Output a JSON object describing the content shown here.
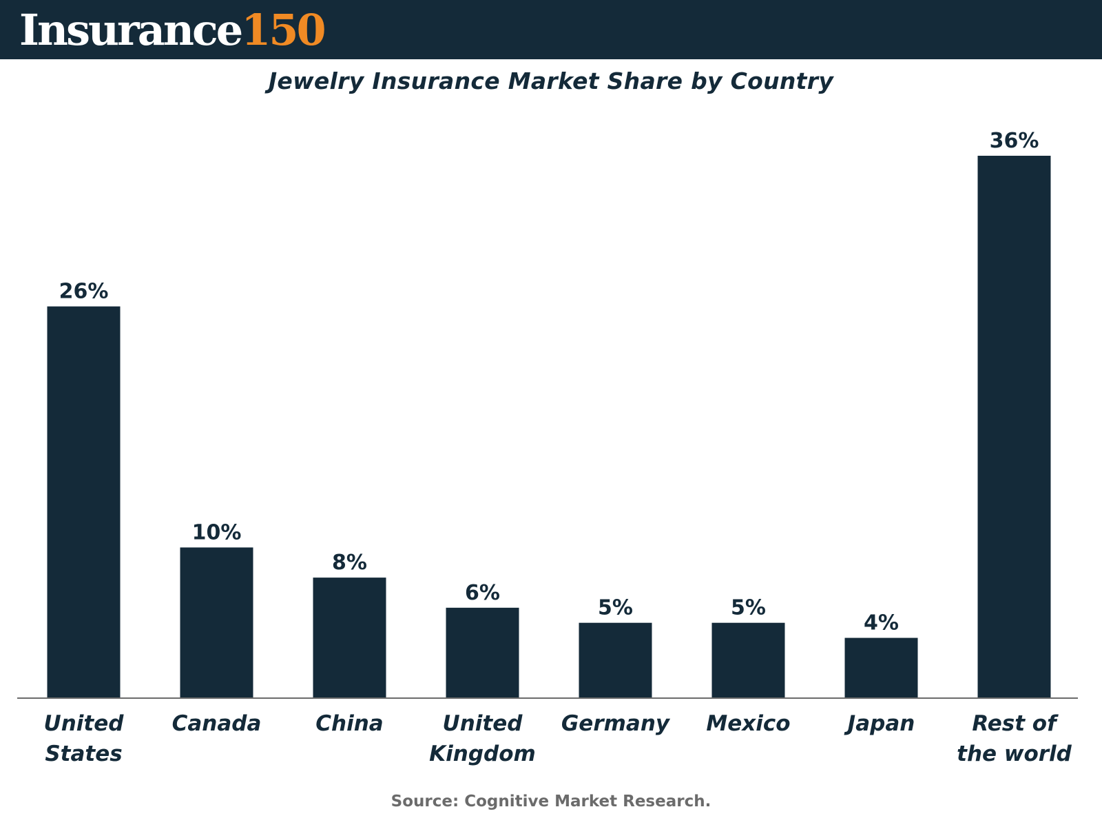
{
  "header": {
    "logo_word": "Insurance",
    "logo_number": "150"
  },
  "source": "Source: Cognitive Market Research.",
  "colors": {
    "bar": "#142a39",
    "header_bg": "#142a39",
    "accent": "#f08a24",
    "text": "#142a39",
    "source_text": "#6b6b6b"
  },
  "chart_data": {
    "type": "bar",
    "title": "Jewelry Insurance Market Share by Country",
    "xlabel": "",
    "ylabel": "",
    "categories": [
      "United States",
      "Canada",
      "China",
      "United Kingdom",
      "Germany",
      "Mexico",
      "Japan",
      "Rest of the world"
    ],
    "category_lines": [
      [
        "United",
        "States"
      ],
      [
        "Canada"
      ],
      [
        "China"
      ],
      [
        "United",
        "Kingdom"
      ],
      [
        "Germany"
      ],
      [
        "Mexico"
      ],
      [
        "Japan"
      ],
      [
        "Rest of",
        "the world"
      ]
    ],
    "values": [
      26,
      10,
      8,
      6,
      5,
      5,
      4,
      36
    ],
    "value_labels": [
      "26%",
      "10%",
      "8%",
      "6%",
      "5%",
      "5%",
      "4%",
      "36%"
    ],
    "unit": "%",
    "ylim": [
      0,
      36
    ],
    "grid": false,
    "legend": "none"
  }
}
